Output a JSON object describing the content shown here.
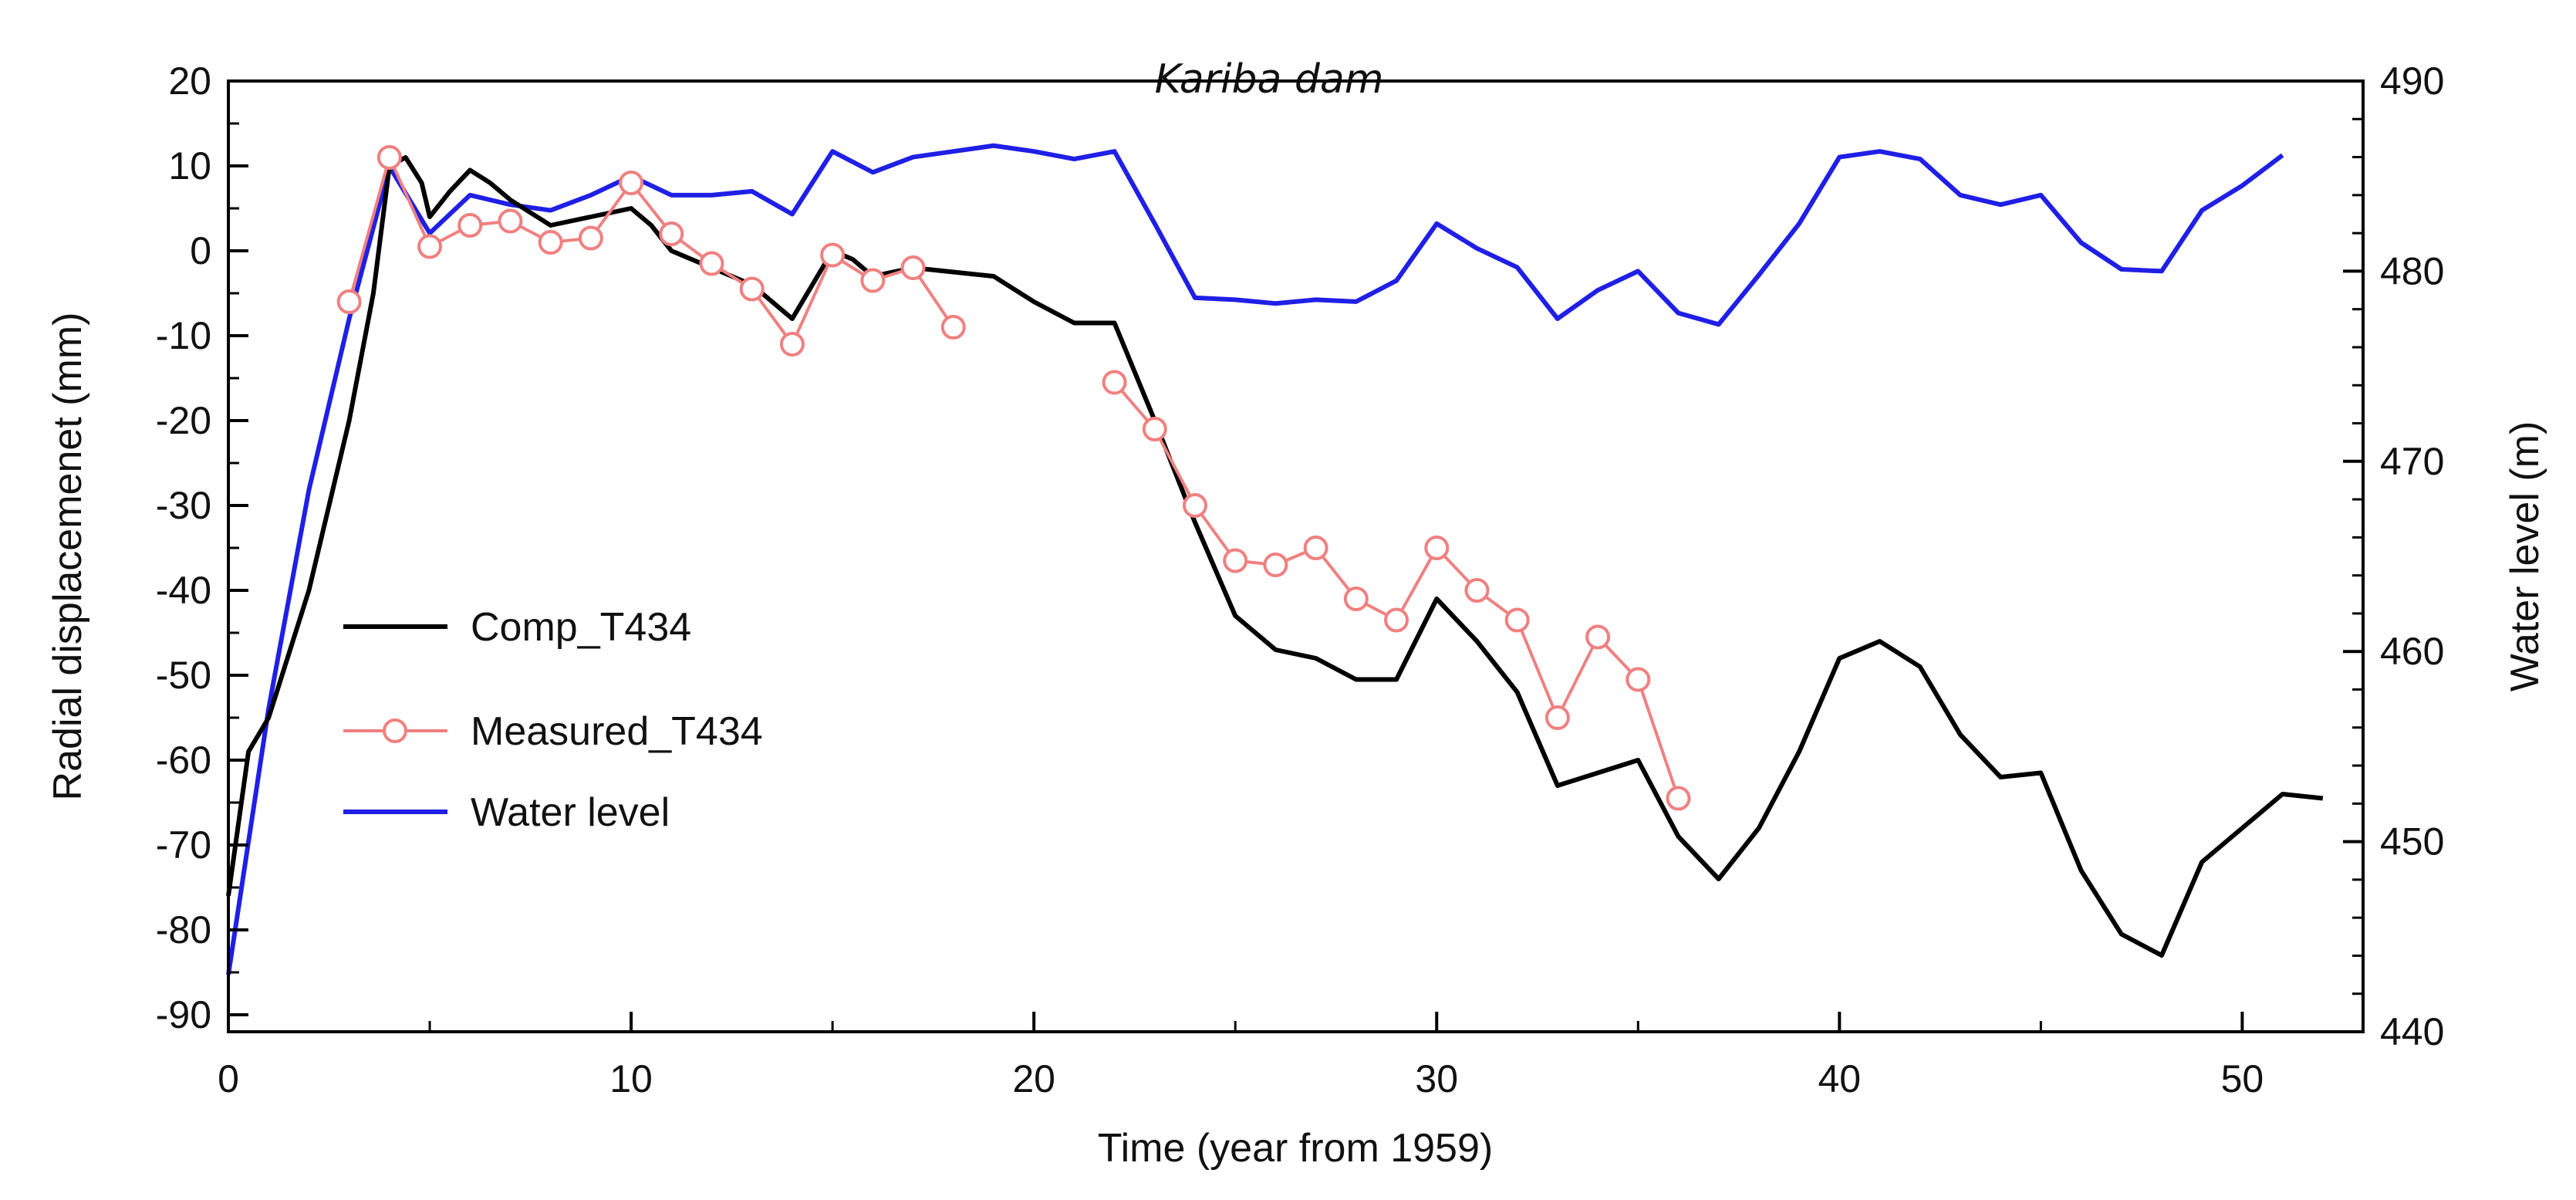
{
  "chart_data": {
    "type": "line",
    "title": "Kariba dam",
    "xlabel": "Time (year from 1959)",
    "ylabel_left": "Radial displacemenet (mm)",
    "ylabel_right": "Water level (m)",
    "xlim": [
      0,
      53
    ],
    "ylim_left": [
      -92,
      20
    ],
    "ylim_right": [
      440,
      490
    ],
    "xticks": [
      0,
      10,
      20,
      30,
      40,
      50
    ],
    "yticks_left": [
      20,
      10,
      0,
      -10,
      -20,
      -30,
      -40,
      -50,
      -60,
      -70,
      -80,
      -90
    ],
    "yticks_right": [
      440,
      450,
      460,
      470,
      480,
      490
    ],
    "grid": false,
    "legend_position": "middle-left",
    "colors": {
      "comp": "#000000",
      "measured": "#f08080",
      "water": "#1f1fe6",
      "axis": "#000000"
    },
    "series": [
      {
        "name": "Comp_T434",
        "axis": "left",
        "style": "line",
        "x": [
          0,
          0.5,
          1,
          2,
          3,
          3.6,
          4,
          4.4,
          4.8,
          5,
          5.5,
          6,
          6.5,
          7,
          8,
          9,
          10,
          10.5,
          11,
          12,
          13,
          14,
          14.5,
          15,
          15.5,
          16,
          17,
          18,
          19,
          20,
          21,
          22,
          23,
          24,
          25,
          26,
          27,
          28,
          29,
          30,
          31,
          32,
          33,
          34,
          35,
          36,
          37,
          38,
          39,
          40,
          41,
          42,
          43,
          44,
          45,
          46,
          47,
          48,
          49,
          50,
          51,
          52
        ],
        "y": [
          -76,
          -59,
          -55,
          -40,
          -20,
          -5,
          10,
          11,
          8,
          4,
          7,
          9.5,
          8,
          6,
          3,
          4,
          5,
          3,
          0,
          -2,
          -4,
          -8,
          -4,
          0,
          -1,
          -3,
          -2,
          -2.5,
          -3,
          -6,
          -8.5,
          -8.5,
          -20,
          -32,
          -43,
          -47,
          -48,
          -50.5,
          -50.5,
          -41,
          -46,
          -52,
          -63,
          -61.5,
          -60,
          -69,
          -74,
          -68,
          -59,
          -48,
          -46,
          -49,
          -57,
          -62,
          -61.5,
          -73,
          -80.5,
          -83,
          -72,
          -68,
          -64,
          -64.5
        ]
      },
      {
        "name": "Measured_T434",
        "axis": "left",
        "style": "line-circle",
        "segments": [
          {
            "x": [
              3,
              4,
              5,
              6,
              7,
              8,
              9,
              10,
              11,
              12,
              13,
              14,
              15,
              16,
              17,
              18
            ],
            "y": [
              -6,
              11,
              0.5,
              3,
              3.5,
              1,
              1.5,
              8,
              2,
              -1.5,
              -4.5,
              -11,
              -0.5,
              -3.5,
              -2,
              -9
            ]
          },
          {
            "x": [
              22,
              23,
              24,
              25,
              26,
              27,
              28,
              29,
              30,
              31,
              32,
              33,
              34,
              35,
              36
            ],
            "y": [
              -15.5,
              -21,
              -30,
              -36.5,
              -37,
              -35,
              -41,
              -43.5,
              -35,
              -40,
              -43.5,
              -55,
              -45.5,
              -50.5,
              -64.5
            ]
          }
        ]
      },
      {
        "name": "Water level",
        "axis": "right",
        "style": "line",
        "x": [
          0,
          1,
          2,
          3,
          4,
          5,
          6,
          7,
          8,
          9,
          10,
          11,
          12,
          13,
          14,
          15,
          16,
          17,
          18,
          19,
          20,
          21,
          22,
          23,
          24,
          25,
          26,
          27,
          28,
          29,
          30,
          31,
          32,
          33,
          34,
          35,
          36,
          37,
          38,
          39,
          40,
          41,
          42,
          43,
          44,
          45,
          46,
          47,
          48,
          49,
          50,
          51
        ],
        "y": [
          443,
          457,
          468.5,
          477.5,
          485.5,
          482,
          484,
          483.5,
          483.2,
          484,
          485,
          484,
          484,
          484.2,
          483,
          486.3,
          485.2,
          486,
          486.3,
          486.6,
          486.3,
          485.9,
          486.3,
          482.5,
          478.6,
          478.5,
          478.3,
          478.5,
          478.4,
          479.5,
          482.5,
          481.2,
          480.2,
          477.5,
          479,
          480,
          477.8,
          477.2,
          479.8,
          482.5,
          486,
          486.3,
          485.9,
          484,
          483.5,
          484,
          481.5,
          480.1,
          480,
          483.2,
          484.5,
          486.1
        ]
      }
    ]
  }
}
